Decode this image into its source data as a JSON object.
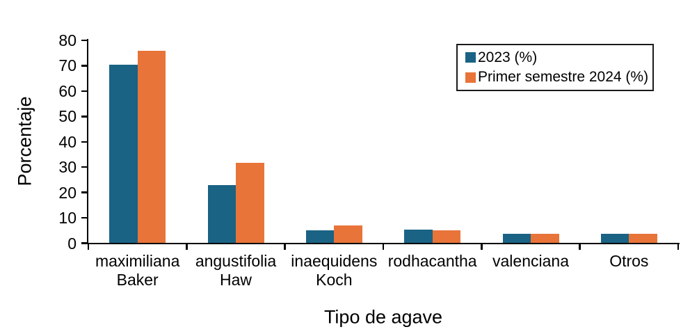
{
  "chart_data": {
    "type": "bar",
    "title": "",
    "xlabel": "Tipo de agave",
    "ylabel": "Porcentaje",
    "ylim": [
      0,
      80
    ],
    "yticks": [
      0,
      10,
      20,
      30,
      40,
      50,
      60,
      70,
      80
    ],
    "grid": false,
    "legend_position": "top-right",
    "background_color": "#FFFFFF",
    "axis_color": "#000000",
    "categories": [
      "maximiliana\nBaker",
      "angustifolia\nHaw",
      "inaequidens\nKoch",
      "rodhacantha",
      "valenciana",
      "Otros"
    ],
    "series": [
      {
        "name": "2023 (%)",
        "color": "#1A6384",
        "values": [
          70.3,
          22.8,
          5.2,
          5.3,
          3.7,
          3.7
        ]
      },
      {
        "name": "Primer semestre 2024 (%)",
        "color": "#E8743A",
        "values": [
          75.8,
          31.6,
          6.9,
          5.2,
          3.7,
          3.7
        ]
      }
    ]
  }
}
